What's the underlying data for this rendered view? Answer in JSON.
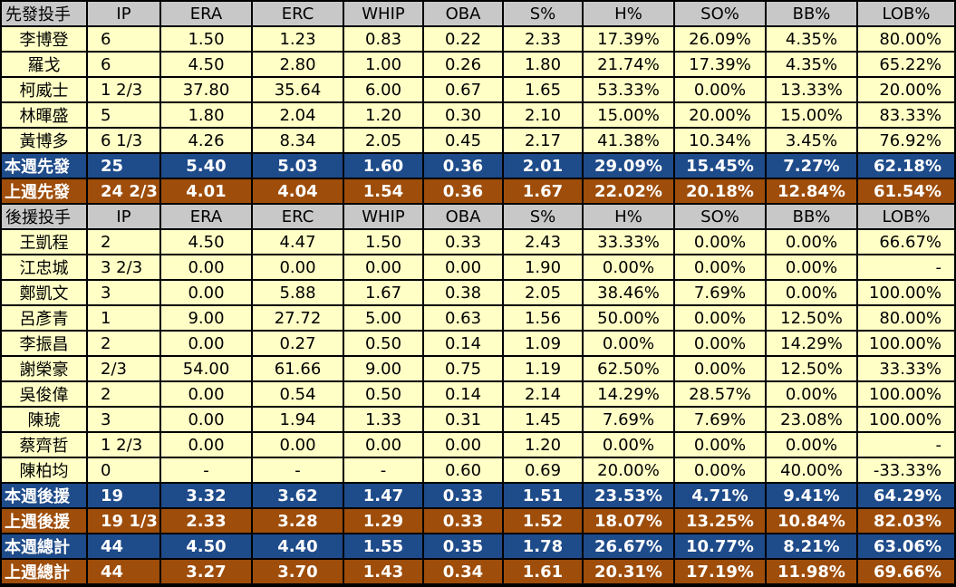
{
  "columns": [
    "IP",
    "ERA",
    "ERC",
    "WHIP",
    "OBA",
    "S%",
    "H%",
    "SO%",
    "BB%",
    "LOB%"
  ],
  "starter_header": "先發投手",
  "starters": [
    [
      "李博登",
      "6",
      "1.50",
      "1.23",
      "0.83",
      "0.22",
      "2.33",
      "17.39%",
      "26.09%",
      "4.35%",
      "80.00%"
    ],
    [
      "羅戈",
      "6",
      "4.50",
      "2.80",
      "1.00",
      "0.26",
      "1.80",
      "21.74%",
      "17.39%",
      "4.35%",
      "65.22%"
    ],
    [
      "柯威士",
      "1 2/3",
      "37.80",
      "35.64",
      "6.00",
      "0.67",
      "1.65",
      "53.33%",
      "0.00%",
      "13.33%",
      "20.00%"
    ],
    [
      "林暉盛",
      "5",
      "1.80",
      "2.04",
      "1.20",
      "0.30",
      "2.10",
      "15.00%",
      "20.00%",
      "15.00%",
      "83.33%"
    ],
    [
      "黃博多",
      "6 1/3",
      "4.26",
      "8.34",
      "2.05",
      "0.45",
      "2.17",
      "41.38%",
      "10.34%",
      "3.45%",
      "76.92%"
    ]
  ],
  "starter_week": [
    "本週先發",
    "25",
    "5.40",
    "5.03",
    "1.60",
    "0.36",
    "2.01",
    "29.09%",
    "15.45%",
    "7.27%",
    "62.18%"
  ],
  "starter_last": [
    "上週先發",
    "24 2/3",
    "4.01",
    "4.04",
    "1.54",
    "0.36",
    "1.67",
    "22.02%",
    "20.18%",
    "12.84%",
    "61.54%"
  ],
  "relief_header": "後援投手",
  "relievers": [
    [
      "王凱程",
      "2",
      "4.50",
      "4.47",
      "1.50",
      "0.33",
      "2.43",
      "33.33%",
      "0.00%",
      "0.00%",
      "66.67%"
    ],
    [
      "江忠城",
      "3 2/3",
      "0.00",
      "0.00",
      "0.00",
      "0.00",
      "1.90",
      "0.00%",
      "0.00%",
      "0.00%",
      "-"
    ],
    [
      "鄭凱文",
      "3",
      "0.00",
      "5.88",
      "1.67",
      "0.38",
      "2.05",
      "38.46%",
      "7.69%",
      "0.00%",
      "100.00%"
    ],
    [
      "呂彥青",
      "1",
      "9.00",
      "27.72",
      "5.00",
      "0.63",
      "1.56",
      "50.00%",
      "0.00%",
      "12.50%",
      "80.00%"
    ],
    [
      "李振昌",
      "2",
      "0.00",
      "0.27",
      "0.50",
      "0.14",
      "1.09",
      "0.00%",
      "0.00%",
      "14.29%",
      "100.00%"
    ],
    [
      "謝榮豪",
      "2/3",
      "54.00",
      "61.66",
      "9.00",
      "0.75",
      "1.19",
      "62.50%",
      "0.00%",
      "12.50%",
      "33.33%"
    ],
    [
      "吳俊偉",
      "2",
      "0.00",
      "0.54",
      "0.50",
      "0.14",
      "2.14",
      "14.29%",
      "28.57%",
      "0.00%",
      "100.00%"
    ],
    [
      "陳琥",
      "3",
      "0.00",
      "1.94",
      "1.33",
      "0.31",
      "1.45",
      "7.69%",
      "7.69%",
      "23.08%",
      "100.00%"
    ],
    [
      "蔡齊哲",
      "1 2/3",
      "0.00",
      "0.00",
      "0.00",
      "0.00",
      "1.20",
      "0.00%",
      "0.00%",
      "0.00%",
      "-"
    ],
    [
      "陳柏均",
      "0",
      "-",
      "-",
      "-",
      "0.60",
      "0.69",
      "20.00%",
      "0.00%",
      "40.00%",
      "-33.33%"
    ]
  ],
  "relief_week": [
    "本週後援",
    "19",
    "3.32",
    "3.62",
    "1.47",
    "0.33",
    "1.51",
    "23.53%",
    "4.71%",
    "9.41%",
    "64.29%"
  ],
  "relief_last": [
    "上週後援",
    "19 1/3",
    "2.33",
    "3.28",
    "1.29",
    "0.33",
    "1.52",
    "18.07%",
    "13.25%",
    "10.84%",
    "82.03%"
  ],
  "total_week": [
    "本週總計",
    "44",
    "4.50",
    "4.40",
    "1.55",
    "0.35",
    "1.78",
    "26.67%",
    "10.77%",
    "8.21%",
    "63.06%"
  ],
  "total_last": [
    "上週總計",
    "44",
    "3.27",
    "3.70",
    "1.43",
    "0.34",
    "1.61",
    "20.31%",
    "17.19%",
    "11.98%",
    "69.66%"
  ],
  "colors": {
    "header_bg": "#c8c8c8",
    "player_bg": "#ffffc6",
    "this_week_bg": "#1e4b8a",
    "last_week_bg": "#9e4d0a"
  }
}
